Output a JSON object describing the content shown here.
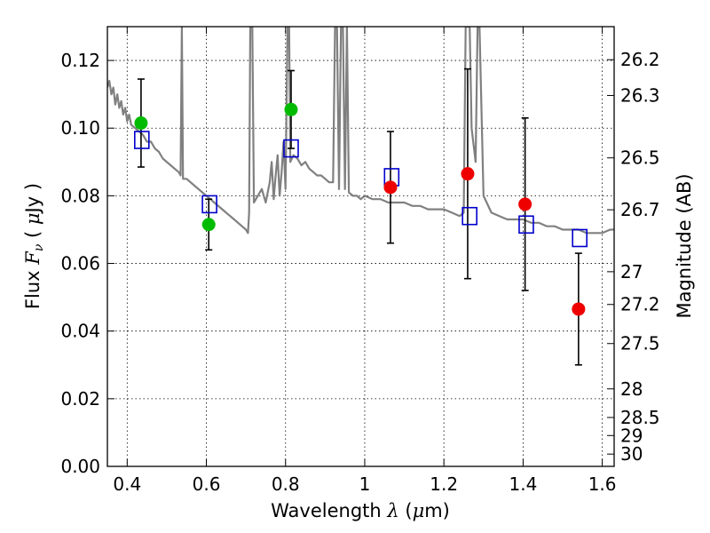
{
  "chart_data": {
    "type": "scatter",
    "xlabel": {
      "prefix": "Wavelength  ",
      "symbol": "λ",
      "suffix": " (",
      "unit_symbol": "μ",
      "unit_rest": "m)"
    },
    "ylabel": {
      "prefix": "Flux  ",
      "symbol": "F",
      "subscript": "ν",
      "suffix": "  ( ",
      "unit_symbol": "μ",
      "unit_rest": "Jy )"
    },
    "y2label": "Magnitude (AB)",
    "xlim": [
      0.35,
      1.63
    ],
    "ylim": [
      0.0,
      0.13
    ],
    "x_ticks": [
      0.4,
      0.6,
      0.8,
      1.0,
      1.2,
      1.4,
      1.6
    ],
    "x_tick_labels": [
      "0.4",
      "0.6",
      "0.8",
      "1",
      "1.2",
      "1.4",
      "1.6"
    ],
    "y_ticks": [
      0.0,
      0.02,
      0.04,
      0.06,
      0.08,
      0.1,
      0.12
    ],
    "y_tick_labels": [
      "0.00",
      "0.02",
      "0.04",
      "0.06",
      "0.08",
      "0.10",
      "0.12"
    ],
    "y2_ticks": [
      26.2,
      26.3,
      26.5,
      26.7,
      27,
      27.2,
      27.5,
      28,
      28.5,
      29,
      30
    ],
    "y2_tick_labels": [
      "26.2",
      "26.3",
      "26.5",
      "26.7",
      "27",
      "27.2",
      "27.5",
      "28",
      "28.5",
      "29",
      "30"
    ],
    "grid": true,
    "colors": {
      "model": "#808080",
      "green": "#00bb00",
      "red": "#ee0000",
      "box": "#0000cc",
      "errorbar": "#000000"
    },
    "series": [
      {
        "marker": "circle",
        "color": "green",
        "points": [
          {
            "x": 0.435,
            "y": 0.1015,
            "ylo": 0.0885,
            "yhi": 0.1145
          },
          {
            "x": 0.606,
            "y": 0.0715,
            "ylo": 0.064,
            "yhi": 0.079
          },
          {
            "x": 0.814,
            "y": 0.1055,
            "ylo": 0.094,
            "yhi": 0.117
          }
        ]
      },
      {
        "marker": "circle",
        "color": "red",
        "points": [
          {
            "x": 1.065,
            "y": 0.0825,
            "ylo": 0.066,
            "yhi": 0.099
          },
          {
            "x": 1.26,
            "y": 0.0865,
            "ylo": 0.0555,
            "yhi": 0.1175
          },
          {
            "x": 1.405,
            "y": 0.0775,
            "ylo": 0.052,
            "yhi": 0.103
          },
          {
            "x": 1.54,
            "y": 0.0465,
            "ylo": 0.03,
            "yhi": 0.063
          }
        ]
      },
      {
        "marker": "square",
        "color": "box",
        "points": [
          {
            "x": 0.437,
            "y": 0.0965
          },
          {
            "x": 0.608,
            "y": 0.0775
          },
          {
            "x": 0.814,
            "y": 0.094
          },
          {
            "x": 1.068,
            "y": 0.0855
          },
          {
            "x": 1.265,
            "y": 0.074
          },
          {
            "x": 1.408,
            "y": 0.0715
          },
          {
            "x": 1.543,
            "y": 0.0675
          }
        ]
      },
      {
        "type": "line",
        "color": "model",
        "points": [
          [
            0.35,
            0.112
          ],
          [
            0.355,
            0.114
          ],
          [
            0.36,
            0.11
          ],
          [
            0.365,
            0.112
          ],
          [
            0.37,
            0.107
          ],
          [
            0.375,
            0.11
          ],
          [
            0.38,
            0.106
          ],
          [
            0.385,
            0.108
          ],
          [
            0.39,
            0.104
          ],
          [
            0.395,
            0.106
          ],
          [
            0.4,
            0.102
          ],
          [
            0.405,
            0.104
          ],
          [
            0.41,
            0.101
          ],
          [
            0.42,
            0.1
          ],
          [
            0.43,
            0.099
          ],
          [
            0.44,
            0.098
          ],
          [
            0.45,
            0.096
          ],
          [
            0.46,
            0.096
          ],
          [
            0.47,
            0.094
          ],
          [
            0.48,
            0.093
          ],
          [
            0.49,
            0.091
          ],
          [
            0.5,
            0.09
          ],
          [
            0.51,
            0.089
          ],
          [
            0.52,
            0.088
          ],
          [
            0.53,
            0.087
          ],
          [
            0.535,
            0.086
          ],
          [
            0.538,
            0.13
          ],
          [
            0.541,
            0.085
          ],
          [
            0.55,
            0.085
          ],
          [
            0.56,
            0.084
          ],
          [
            0.57,
            0.083
          ],
          [
            0.58,
            0.082
          ],
          [
            0.59,
            0.081
          ],
          [
            0.6,
            0.08
          ],
          [
            0.61,
            0.079
          ],
          [
            0.62,
            0.078
          ],
          [
            0.63,
            0.077
          ],
          [
            0.64,
            0.076
          ],
          [
            0.65,
            0.075
          ],
          [
            0.66,
            0.074
          ],
          [
            0.67,
            0.073
          ],
          [
            0.68,
            0.072
          ],
          [
            0.69,
            0.071
          ],
          [
            0.7,
            0.07
          ],
          [
            0.705,
            0.069
          ],
          [
            0.708,
            0.075
          ],
          [
            0.711,
            0.13
          ],
          [
            0.716,
            0.13
          ],
          [
            0.72,
            0.078
          ],
          [
            0.73,
            0.08
          ],
          [
            0.74,
            0.082
          ],
          [
            0.75,
            0.078
          ],
          [
            0.76,
            0.084
          ],
          [
            0.765,
            0.09
          ],
          [
            0.77,
            0.079
          ],
          [
            0.775,
            0.086
          ],
          [
            0.78,
            0.092
          ],
          [
            0.785,
            0.08
          ],
          [
            0.79,
            0.087
          ],
          [
            0.795,
            0.096
          ],
          [
            0.8,
            0.082
          ],
          [
            0.805,
            0.13
          ],
          [
            0.809,
            0.13
          ],
          [
            0.812,
            0.09
          ],
          [
            0.82,
            0.092
          ],
          [
            0.83,
            0.091
          ],
          [
            0.84,
            0.089
          ],
          [
            0.85,
            0.09
          ],
          [
            0.86,
            0.088
          ],
          [
            0.87,
            0.087
          ],
          [
            0.88,
            0.086
          ],
          [
            0.89,
            0.086
          ],
          [
            0.9,
            0.085
          ],
          [
            0.91,
            0.084
          ],
          [
            0.92,
            0.084
          ],
          [
            0.925,
            0.13
          ],
          [
            0.93,
            0.13
          ],
          [
            0.935,
            0.082
          ],
          [
            0.94,
            0.13
          ],
          [
            0.945,
            0.13
          ],
          [
            0.95,
            0.082
          ],
          [
            0.955,
            0.13
          ],
          [
            0.96,
            0.081
          ],
          [
            0.97,
            0.08
          ],
          [
            0.98,
            0.08
          ],
          [
            0.99,
            0.079
          ],
          [
            1.0,
            0.08
          ],
          [
            1.02,
            0.079
          ],
          [
            1.04,
            0.079
          ],
          [
            1.06,
            0.078
          ],
          [
            1.08,
            0.078
          ],
          [
            1.1,
            0.078
          ],
          [
            1.12,
            0.077
          ],
          [
            1.14,
            0.077
          ],
          [
            1.16,
            0.076
          ],
          [
            1.18,
            0.076
          ],
          [
            1.2,
            0.076
          ],
          [
            1.22,
            0.075
          ],
          [
            1.24,
            0.074
          ],
          [
            1.25,
            0.075
          ],
          [
            1.255,
            0.13
          ],
          [
            1.265,
            0.13
          ],
          [
            1.27,
            0.1
          ],
          [
            1.28,
            0.09
          ],
          [
            1.285,
            0.13
          ],
          [
            1.29,
            0.13
          ],
          [
            1.3,
            0.08
          ],
          [
            1.32,
            0.075
          ],
          [
            1.34,
            0.074
          ],
          [
            1.36,
            0.073
          ],
          [
            1.38,
            0.073
          ],
          [
            1.4,
            0.073
          ],
          [
            1.42,
            0.072
          ],
          [
            1.44,
            0.072
          ],
          [
            1.46,
            0.071
          ],
          [
            1.48,
            0.071
          ],
          [
            1.5,
            0.07
          ],
          [
            1.52,
            0.07
          ],
          [
            1.54,
            0.07
          ],
          [
            1.56,
            0.069
          ],
          [
            1.58,
            0.069
          ],
          [
            1.6,
            0.069
          ],
          [
            1.62,
            0.07
          ],
          [
            1.63,
            0.07
          ]
        ]
      }
    ]
  }
}
